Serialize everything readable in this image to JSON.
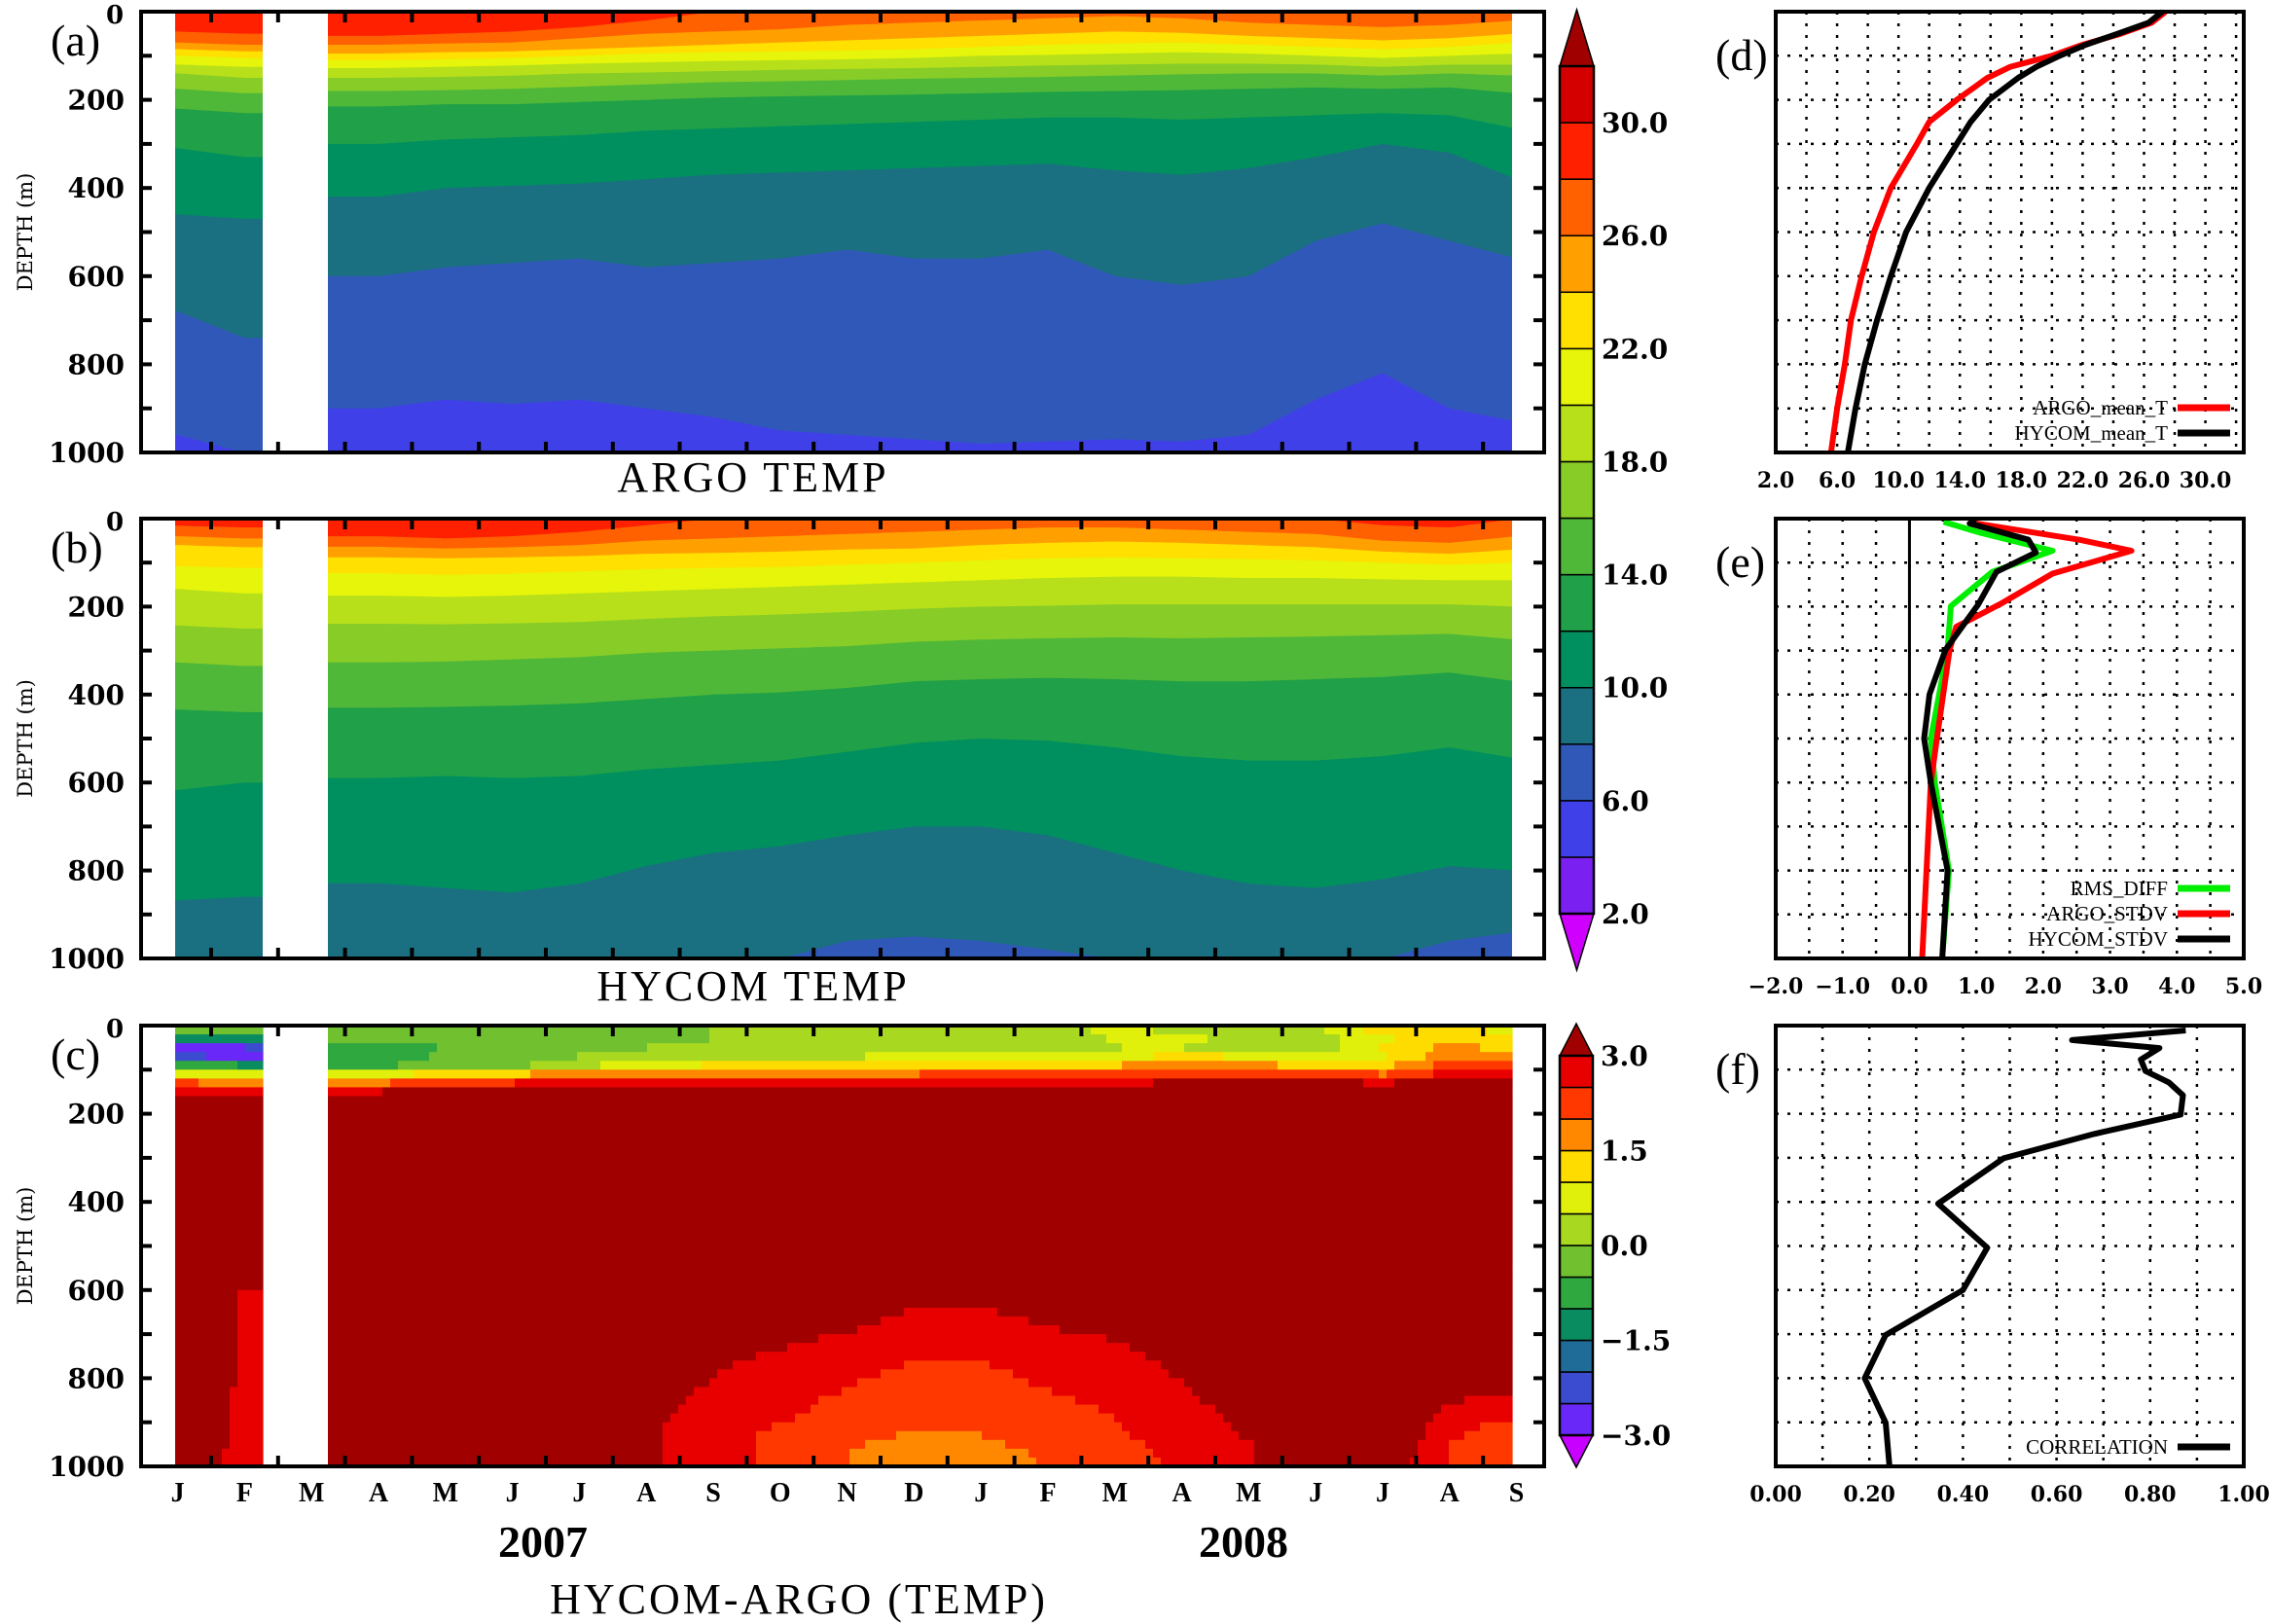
{
  "chart_data": [
    {
      "panel_label": "(a)",
      "type": "heatmap",
      "title": "ARGO TEMP",
      "ylabel": "DEPTH (m)",
      "ylim": [
        1000,
        0
      ],
      "yticks": [
        "0",
        "200",
        "400",
        "600",
        "800",
        "1000"
      ],
      "x_range": [
        "2007-01",
        "2008-09"
      ],
      "missing_months": [
        "2007-03"
      ],
      "isotherm_levels": [
        28,
        26,
        24,
        22,
        20,
        18,
        16,
        14,
        12,
        10,
        8,
        6
      ],
      "isotherm_depths_by_month": [
        [
          45,
          70,
          85,
          100,
          120,
          140,
          175,
          220,
          310,
          460,
          680,
          960
        ],
        [
          50,
          75,
          90,
          105,
          125,
          150,
          185,
          230,
          330,
          470,
          740,
          1001
        ],
        null,
        [
          55,
          75,
          95,
          110,
          128,
          150,
          180,
          215,
          300,
          420,
          600,
          900
        ],
        [
          50,
          72,
          92,
          108,
          125,
          148,
          178,
          210,
          290,
          400,
          580,
          880
        ],
        [
          45,
          70,
          90,
          105,
          122,
          145,
          175,
          210,
          285,
          395,
          570,
          890
        ],
        [
          35,
          60,
          85,
          100,
          118,
          140,
          170,
          205,
          280,
          390,
          560,
          880
        ],
        [
          20,
          50,
          80,
          95,
          115,
          138,
          165,
          200,
          270,
          380,
          580,
          900
        ],
        [
          0,
          45,
          75,
          92,
          112,
          135,
          160,
          195,
          265,
          370,
          570,
          920
        ],
        [
          0,
          40,
          70,
          90,
          110,
          132,
          158,
          192,
          260,
          365,
          560,
          950
        ],
        [
          0,
          30,
          65,
          88,
          108,
          130,
          155,
          190,
          255,
          360,
          540,
          960
        ],
        [
          0,
          25,
          60,
          85,
          105,
          128,
          152,
          188,
          250,
          355,
          560,
          970
        ],
        [
          0,
          20,
          55,
          80,
          100,
          125,
          150,
          185,
          245,
          350,
          560,
          980
        ],
        [
          0,
          15,
          50,
          75,
          98,
          122,
          148,
          182,
          240,
          345,
          540,
          975
        ],
        [
          0,
          10,
          45,
          72,
          95,
          120,
          145,
          180,
          240,
          360,
          600,
          970
        ],
        [
          0,
          15,
          48,
          70,
          92,
          118,
          142,
          178,
          245,
          370,
          620,
          975
        ],
        [
          0,
          25,
          55,
          75,
          95,
          118,
          140,
          175,
          240,
          355,
          600,
          960
        ],
        [
          0,
          30,
          60,
          80,
          100,
          120,
          140,
          172,
          235,
          330,
          520,
          880
        ],
        [
          0,
          35,
          65,
          85,
          105,
          125,
          145,
          175,
          230,
          300,
          480,
          820
        ],
        [
          0,
          30,
          60,
          80,
          100,
          120,
          140,
          172,
          235,
          320,
          520,
          900
        ],
        [
          0,
          20,
          50,
          70,
          95,
          120,
          145,
          185,
          265,
          380,
          560,
          930
        ]
      ]
    },
    {
      "panel_label": "(b)",
      "type": "heatmap",
      "title": "HYCOM TEMP",
      "ylabel": "DEPTH (m)",
      "ylim": [
        1000,
        0
      ],
      "yticks": [
        "0",
        "200",
        "400",
        "600",
        "800",
        "1000"
      ],
      "x_range": [
        "2007-01",
        "2008-09"
      ],
      "missing_months": [
        "2007-03"
      ],
      "isotherm_levels": [
        28,
        26,
        24,
        22,
        20,
        18,
        16,
        14,
        12,
        10,
        8
      ],
      "isotherm_depths_by_month": [
        [
          16,
          40,
          60,
          108,
          160,
          243,
          327,
          434,
          617,
          868,
          1001
        ],
        [
          20,
          45,
          65,
          112,
          170,
          250,
          335,
          440,
          600,
          860,
          1001
        ],
        null,
        [
          40,
          64,
          88,
          124,
          175,
          239,
          327,
          430,
          590,
          829,
          1001
        ],
        [
          45,
          68,
          90,
          128,
          178,
          240,
          325,
          428,
          585,
          840,
          1001
        ],
        [
          40,
          65,
          88,
          125,
          175,
          238,
          320,
          425,
          590,
          850,
          1001
        ],
        [
          30,
          60,
          85,
          120,
          170,
          235,
          315,
          420,
          585,
          830,
          1001
        ],
        [
          15,
          50,
          80,
          115,
          165,
          228,
          305,
          410,
          570,
          790,
          1001
        ],
        [
          0,
          45,
          78,
          112,
          160,
          222,
          300,
          400,
          560,
          760,
          1001
        ],
        [
          0,
          40,
          75,
          110,
          155,
          218,
          295,
          395,
          550,
          745,
          1001
        ],
        [
          0,
          35,
          70,
          105,
          150,
          212,
          290,
          385,
          530,
          720,
          960
        ],
        [
          0,
          30,
          68,
          100,
          145,
          205,
          280,
          370,
          510,
          700,
          950
        ],
        [
          0,
          25,
          60,
          95,
          140,
          200,
          275,
          365,
          500,
          700,
          960
        ],
        [
          0,
          20,
          55,
          90,
          135,
          198,
          272,
          362,
          505,
          720,
          980
        ],
        [
          0,
          20,
          52,
          88,
          132,
          195,
          270,
          365,
          520,
          760,
          1001
        ],
        [
          0,
          25,
          55,
          90,
          132,
          195,
          272,
          370,
          540,
          800,
          1001
        ],
        [
          0,
          30,
          60,
          92,
          135,
          195,
          270,
          370,
          550,
          830,
          1001
        ],
        [
          0,
          35,
          65,
          95,
          135,
          195,
          268,
          365,
          550,
          840,
          1001
        ],
        [
          15,
          50,
          75,
          100,
          138,
          195,
          265,
          360,
          540,
          820,
          1001
        ],
        [
          20,
          55,
          80,
          105,
          140,
          195,
          262,
          350,
          520,
          790,
          960
        ],
        [
          0,
          40,
          70,
          100,
          140,
          200,
          275,
          370,
          545,
          800,
          940
        ]
      ]
    },
    {
      "panel_label": "(c)",
      "type": "heatmap",
      "title": "HYCOM-ARGO (TEMP)",
      "ylabel": "DEPTH (m)",
      "ylim": [
        1000,
        0
      ],
      "yticks": [
        "0",
        "200",
        "400",
        "600",
        "800",
        "1000"
      ],
      "month_labels": [
        "J",
        "F",
        "M",
        "A",
        "M",
        "J",
        "J",
        "A",
        "S",
        "O",
        "N",
        "D",
        "J",
        "F",
        "M",
        "A",
        "M",
        "J",
        "J",
        "A",
        "S"
      ],
      "year_labels": [
        "2007",
        "2008"
      ],
      "missing_months": [
        "2007-03"
      ]
    },
    {
      "panel_label": "(d)",
      "type": "line",
      "xlim": [
        2,
        32.5
      ],
      "ylim": [
        1000,
        0
      ],
      "xticks": [
        "2.0",
        "6.0",
        "10.0",
        "14.0",
        "18.0",
        "22.0",
        "26.0",
        "30.0"
      ],
      "xtick_values": [
        2,
        6,
        10,
        14,
        18,
        22,
        26,
        30
      ],
      "grid": true,
      "legend": "bottom-right",
      "series": [
        {
          "name": "ARGO_mean_T",
          "color": "#ff0000",
          "depth": [
            0,
            25,
            50,
            75,
            100,
            125,
            150,
            200,
            250,
            300,
            400,
            500,
            600,
            700,
            800,
            900,
            1000
          ],
          "values": [
            27.4,
            26.5,
            24.5,
            22.0,
            20.0,
            17.3,
            15.8,
            13.8,
            12.0,
            11.2,
            9.5,
            8.4,
            7.6,
            6.9,
            6.5,
            6.0,
            5.6
          ]
        },
        {
          "name": "HYCOM_mean_T",
          "color": "#000000",
          "depth": [
            0,
            25,
            50,
            75,
            100,
            125,
            150,
            200,
            250,
            300,
            400,
            500,
            600,
            700,
            800,
            900,
            1000
          ],
          "values": [
            27.2,
            26.3,
            24.3,
            22.2,
            20.5,
            19.0,
            17.8,
            15.9,
            14.7,
            13.8,
            12.0,
            10.5,
            9.5,
            8.6,
            7.8,
            7.2,
            6.7
          ]
        }
      ]
    },
    {
      "panel_label": "(e)",
      "type": "line",
      "xlim": [
        -2,
        5
      ],
      "ylim": [
        1000,
        0
      ],
      "xticks": [
        "−2.0",
        "−1.0",
        "0.0",
        "1.0",
        "2.0",
        "3.0",
        "4.0",
        "5.0"
      ],
      "xtick_values": [
        -2,
        -1,
        0,
        1,
        2,
        3,
        4,
        5
      ],
      "grid": true,
      "legend": "bottom-right",
      "series": [
        {
          "name": "RMS_DIFF",
          "color": "#00ee00",
          "depth": [
            7,
            33,
            73,
            121,
            199,
            298,
            500,
            600,
            800,
            1000
          ],
          "values": [
            0.51,
            1.08,
            2.14,
            1.24,
            0.62,
            0.57,
            0.32,
            0.38,
            0.59,
            0.49
          ]
        },
        {
          "name": "ARGO_STDV",
          "color": "#ff0000",
          "depth": [
            11,
            48,
            73,
            125,
            195,
            246,
            298,
            500,
            600,
            1000
          ],
          "values": [
            1.0,
            2.54,
            3.32,
            2.14,
            1.35,
            0.7,
            0.6,
            0.41,
            0.32,
            0.19
          ]
        },
        {
          "name": "HYCOM_STDV",
          "color": "#000000",
          "depth": [
            7,
            11,
            48,
            77,
            121,
            195,
            298,
            400,
            500,
            600,
            800,
            1000
          ],
          "values": [
            1.0,
            0.9,
            1.78,
            1.89,
            1.3,
            1.03,
            0.54,
            0.3,
            0.22,
            0.32,
            0.57,
            0.49
          ]
        }
      ]
    },
    {
      "panel_label": "(f)",
      "type": "line",
      "xlim": [
        0,
        1
      ],
      "ylim": [
        1000,
        0
      ],
      "xticks": [
        "0.00",
        "0.20",
        "0.40",
        "0.60",
        "0.80",
        "1.00"
      ],
      "xtick_values": [
        0,
        0.2,
        0.4,
        0.6,
        0.8,
        1.0
      ],
      "grid": true,
      "legend": "bottom-right",
      "series": [
        {
          "name": "CORRELATION",
          "color": "#000000",
          "depth": [
            11,
            33,
            51,
            77,
            103,
            129,
            158,
            202,
            246,
            301,
            404,
            504,
            600,
            702,
            800,
            901,
            1000
          ],
          "values": [
            0.876,
            0.633,
            0.82,
            0.78,
            0.79,
            0.84,
            0.87,
            0.865,
            0.68,
            0.487,
            0.347,
            0.452,
            0.4,
            0.235,
            0.19,
            0.235,
            0.243
          ]
        }
      ]
    }
  ],
  "colorbars": [
    {
      "for": "temperature",
      "min": 2,
      "max": 32,
      "step": 2,
      "labels": [
        "30.0",
        "26.0",
        "22.0",
        "18.0",
        "14.0",
        "10.0",
        "6.0",
        "2.0"
      ],
      "label_values": [
        30,
        26,
        22,
        18,
        14,
        10,
        6,
        2
      ],
      "colors": [
        "#7a20f0",
        "#4040e8",
        "#3058b8",
        "#1a7080",
        "#009060",
        "#20a048",
        "#50b838",
        "#88cc28",
        "#b8e01a",
        "#e6f50a",
        "#ffe000",
        "#ffa000",
        "#ff6000",
        "#ff2000",
        "#d40000"
      ],
      "under": "#d000ff",
      "over": "#a00000"
    },
    {
      "for": "difference",
      "min": -3,
      "max": 3,
      "step": 0.5,
      "labels": [
        "3.0",
        "1.5",
        "0.0",
        "−1.5",
        "−3.0"
      ],
      "label_values": [
        3,
        1.5,
        0,
        -1.5,
        -3
      ],
      "colors": [
        "#6a28f8",
        "#3c4cd0",
        "#206c98",
        "#088c60",
        "#30a840",
        "#70c030",
        "#a8d820",
        "#e0f00a",
        "#ffdc00",
        "#ff8800",
        "#ff3800",
        "#e80000"
      ],
      "under": "#c800ff",
      "over": "#a00000"
    }
  ]
}
